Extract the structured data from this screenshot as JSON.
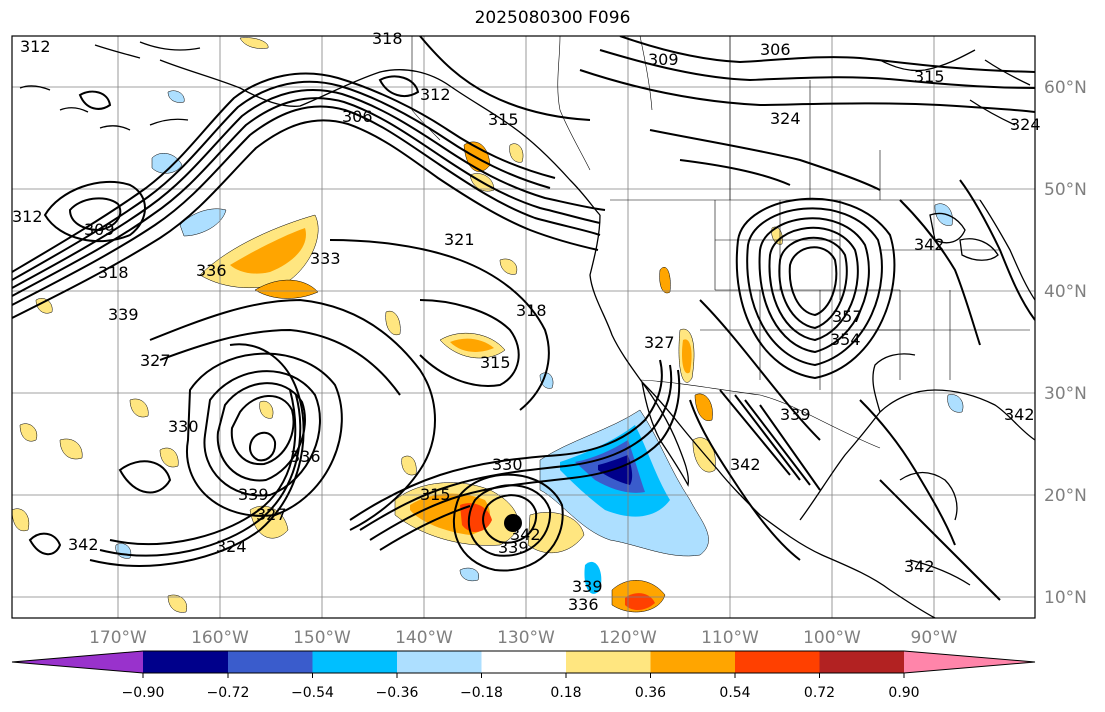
{
  "title": "2025080300 F096",
  "map": {
    "lon_ticks": [
      "170°W",
      "160°W",
      "150°W",
      "140°W",
      "130°W",
      "120°W",
      "110°W",
      "100°W",
      "90°W"
    ],
    "lat_ticks": [
      "60°N",
      "50°N",
      "40°N",
      "30°N",
      "20°N",
      "10°N"
    ],
    "contour_labels": [
      "312",
      "318",
      "309",
      "306",
      "315",
      "324",
      "324",
      "306",
      "312",
      "315",
      "309",
      "318",
      "336",
      "333",
      "321",
      "339",
      "342",
      "330",
      "327",
      "318",
      "315",
      "327",
      "357",
      "354",
      "339",
      "342",
      "336",
      "339",
      "327",
      "324",
      "330",
      "315",
      "342",
      "339",
      "336",
      "339",
      "342",
      "342",
      "342",
      "312"
    ],
    "storm_marker": "black-dot",
    "colors": {
      "contour": "#000000",
      "coast": "#000000",
      "grid": "#808080"
    }
  },
  "colorbar": {
    "ticks": [
      "−0.90",
      "−0.72",
      "−0.54",
      "−0.36",
      "−0.18",
      "0.18",
      "0.36",
      "0.54",
      "0.72",
      "0.90"
    ],
    "colors": [
      "#9932cc",
      "#00008b",
      "#3a5ccc",
      "#00bfff",
      "#addfff",
      "#ffffff",
      "#ffe680",
      "#ffa500",
      "#ff4000",
      "#b22222",
      "#ff85aa"
    ]
  }
}
